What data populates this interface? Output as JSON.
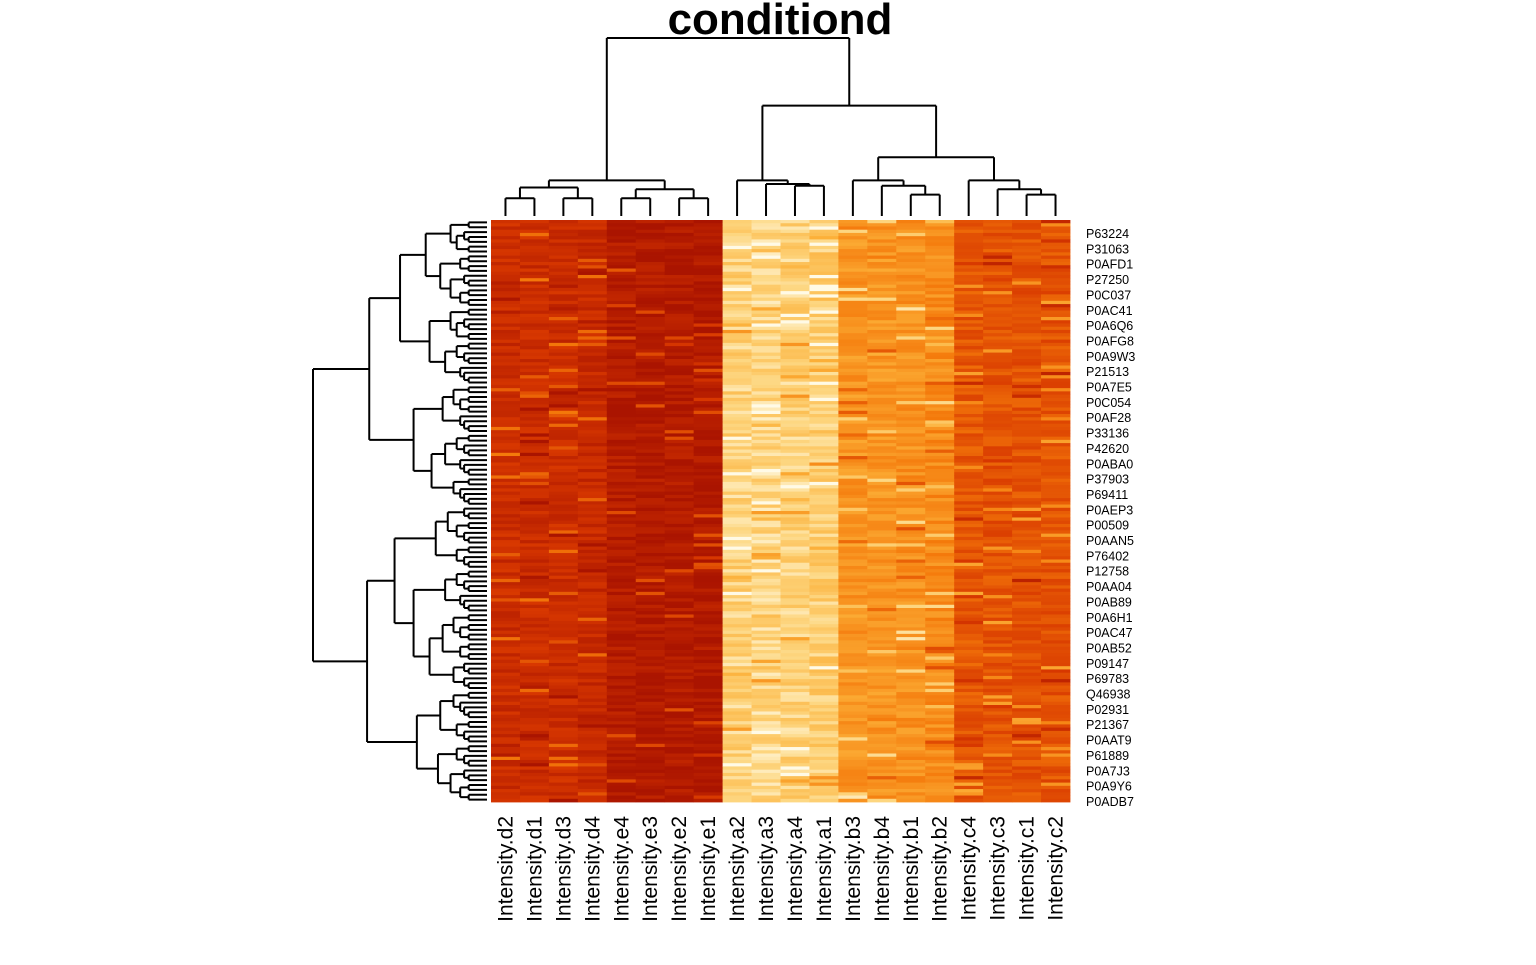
{
  "chart_data": {
    "type": "heatmap",
    "title": "conditiond",
    "xlabel": "",
    "ylabel": "",
    "color_scale": [
      "#b31a00",
      "#ff8c1a",
      "#fff2cc"
    ],
    "columns": [
      "Intensity.d2",
      "Intensity.d1",
      "Intensity.d3",
      "Intensity.d4",
      "Intensity.e4",
      "Intensity.e3",
      "Intensity.e2",
      "Intensity.e1",
      "Intensity.a2",
      "Intensity.a3",
      "Intensity.a4",
      "Intensity.a1",
      "Intensity.b3",
      "Intensity.b4",
      "Intensity.b1",
      "Intensity.b2",
      "Intensity.c4",
      "Intensity.c3",
      "Intensity.c1",
      "Intensity.c2"
    ],
    "column_base_level": [
      0.18,
      0.18,
      0.18,
      0.16,
      0.06,
      0.05,
      0.05,
      0.04,
      0.86,
      0.88,
      0.86,
      0.84,
      0.62,
      0.62,
      0.6,
      0.58,
      0.38,
      0.36,
      0.36,
      0.36
    ],
    "row_labels": [
      "P63224",
      "P31063",
      "P0AFD1",
      "P27250",
      "P0C037",
      "P0AC41",
      "P0A6Q6",
      "P0AFG8",
      "P0A9W3",
      "P21513",
      "P0A7E5",
      "P0C054",
      "P0AF28",
      "P33136",
      "P42620",
      "P0ABA0",
      "P37903",
      "P69411",
      "P0AEP3",
      "P00509",
      "P0AAN5",
      "P76402",
      "P12758",
      "P0AA04",
      "P0AB89",
      "P0A6H1",
      "P0AC47",
      "P0AB52",
      "P09147",
      "P69783",
      "Q46938",
      "P02931",
      "P21367",
      "P0AAT9",
      "P61889",
      "P0A7J3",
      "P0A9Y6",
      "P0ADB7"
    ],
    "column_dendrogram": [
      [
        0,
        1,
        0.1
      ],
      [
        2,
        3,
        0.1
      ],
      [
        20,
        21,
        0.16
      ],
      [
        4,
        5,
        0.1
      ],
      [
        6,
        7,
        0.1
      ],
      [
        23,
        24,
        0.15
      ],
      [
        22,
        25,
        0.2
      ],
      [
        10,
        11,
        0.17
      ],
      [
        9,
        27,
        0.18
      ],
      [
        8,
        28,
        0.2
      ],
      [
        14,
        15,
        0.12
      ],
      [
        13,
        30,
        0.17
      ],
      [
        12,
        31,
        0.2
      ],
      [
        18,
        19,
        0.12
      ],
      [
        17,
        33,
        0.15
      ],
      [
        16,
        34,
        0.2
      ],
      [
        32,
        35,
        0.33
      ],
      [
        29,
        36,
        0.62
      ],
      [
        26,
        37,
        1.0
      ]
    ]
  }
}
